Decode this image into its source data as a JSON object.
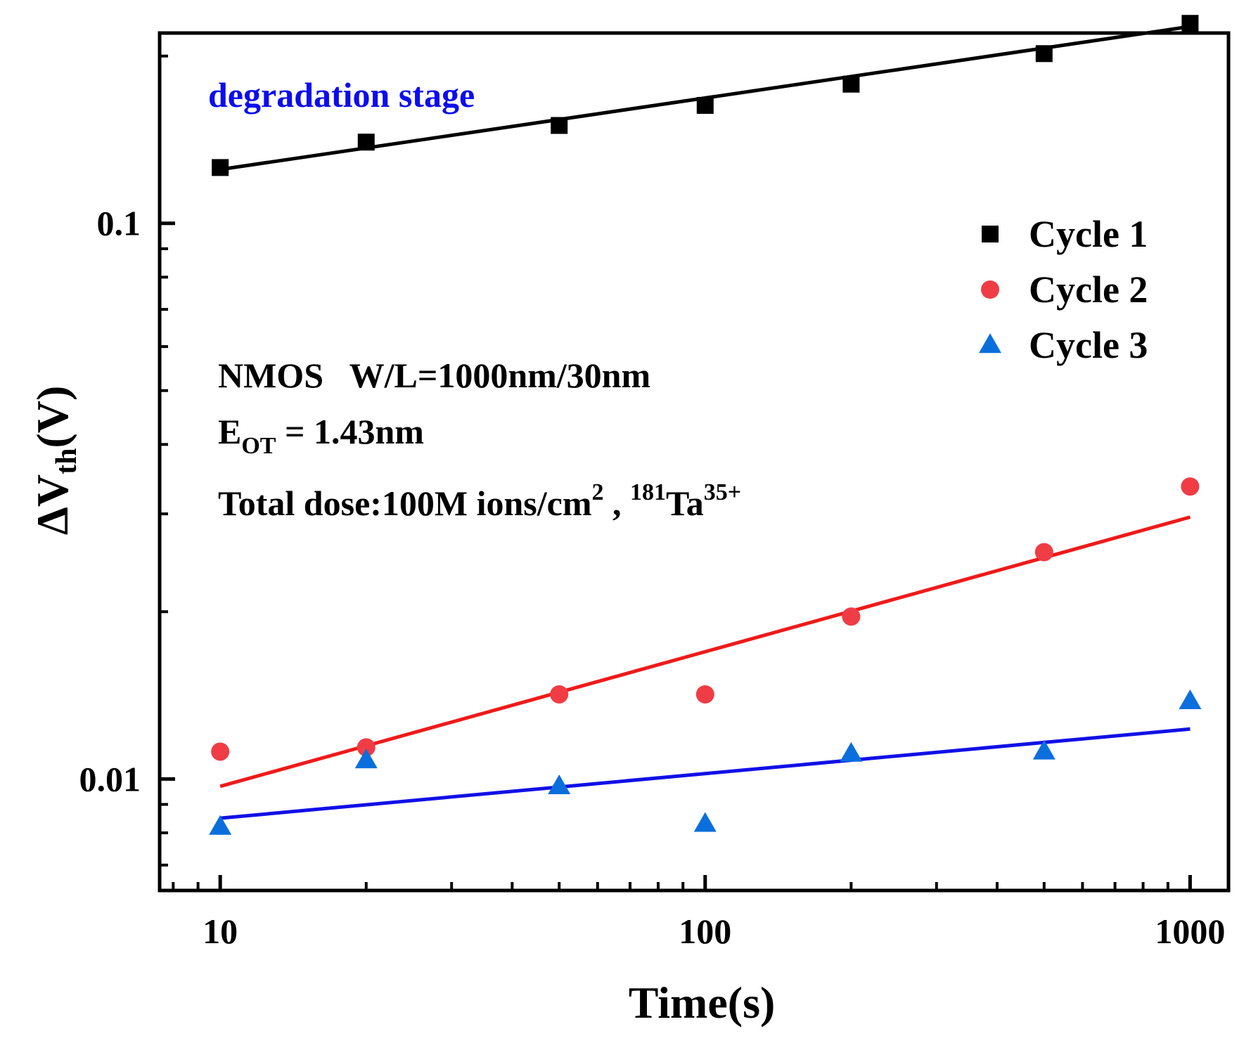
{
  "chart_data": {
    "type": "scatter",
    "xscale": "log",
    "yscale": "log",
    "xlim": [
      7.5,
      1200
    ],
    "ylim": [
      0.0063,
      0.22
    ],
    "xlabel": "Time(s)",
    "ylabel": {
      "prefix": "ΔV",
      "sub": "th",
      "suffix": "(V)"
    },
    "x_ticks": [
      {
        "value": 10,
        "label": "10"
      },
      {
        "value": 100,
        "label": "100"
      },
      {
        "value": 1000,
        "label": "1000"
      }
    ],
    "y_ticks": [
      {
        "value": 0.01,
        "label": "0.01"
      },
      {
        "value": 0.1,
        "label": "0.1"
      }
    ],
    "series": [
      {
        "name": "Cycle 1",
        "marker": "square",
        "color": "#000000",
        "line_color": "#000000",
        "x": [
          10,
          20,
          50,
          100,
          200,
          500,
          1000
        ],
        "y": [
          0.126,
          0.14,
          0.15,
          0.163,
          0.178,
          0.202,
          0.229
        ],
        "fit": [
          [
            10,
            0.125
          ],
          [
            1000,
            0.226
          ]
        ]
      },
      {
        "name": "Cycle 2",
        "marker": "circle",
        "color": "#f03c45",
        "line_color": "#ef1a1a",
        "x": [
          10,
          20,
          50,
          100,
          200,
          500,
          1000
        ],
        "y": [
          0.0112,
          0.0114,
          0.0142,
          0.0142,
          0.0196,
          0.0256,
          0.0336
        ],
        "fit": [
          [
            10,
            0.0097
          ],
          [
            1000,
            0.0296
          ]
        ]
      },
      {
        "name": "Cycle 3",
        "marker": "triangle",
        "color": "#0a6fdc",
        "line_color": "#1010e6",
        "x": [
          10,
          20,
          50,
          100,
          200,
          500,
          1000
        ],
        "y": [
          0.0082,
          0.0108,
          0.0097,
          0.0083,
          0.0111,
          0.0112,
          0.0138
        ],
        "fit": [
          [
            10,
            0.0085
          ],
          [
            1000,
            0.0123
          ]
        ]
      }
    ],
    "legend": {
      "placement": "top-right"
    },
    "annotations": {
      "stage": {
        "text": "degradation stage",
        "color": "#0c0cf0"
      },
      "device": "NMOS   W/L=1000nm/30nm",
      "eot": {
        "prefix": "E",
        "sub": "OT",
        "suffix": " = 1.43nm"
      },
      "dose": {
        "text": "Total dose:100M ions/cm",
        "sup": "2",
        "mid": " , ",
        "iso_sup": "181",
        "element": "Ta",
        "charge_sup": "35+"
      }
    }
  }
}
